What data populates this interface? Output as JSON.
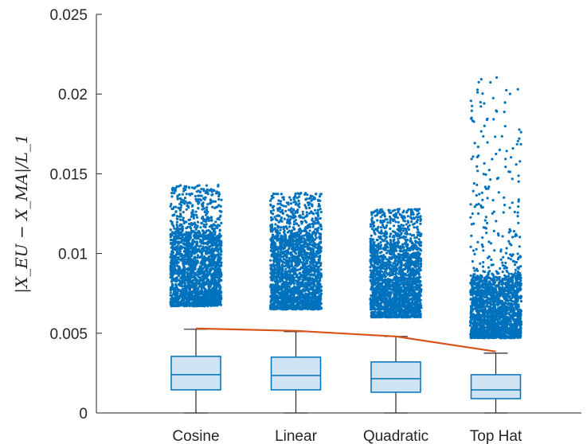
{
  "chart_data": {
    "type": "box",
    "title": "",
    "xlabel": "",
    "ylabel": "|X_EU − X_MA|/L_1",
    "ylim": [
      0,
      0.025
    ],
    "yticks": [
      0,
      0.005,
      0.01,
      0.015,
      0.02,
      0.025
    ],
    "ytick_labels": [
      "0",
      "0.005",
      "0.01",
      "0.015",
      "0.02",
      "0.025"
    ],
    "grid": false,
    "colors": {
      "box_edge": "#0072BD",
      "box_fill": "#cfe3f2",
      "outlier": "#0072BD",
      "whisker": "#262626",
      "trend_line": "#D95319"
    },
    "categories": [
      "Cosine",
      "Linear",
      "Quadratic",
      "Top Hat"
    ],
    "boxes": [
      {
        "category": "Cosine",
        "whisker_low": 0,
        "q1": 0.00145,
        "median": 0.0024,
        "q3": 0.00355,
        "whisker_high": 0.00525,
        "outlier_min": 0.0067,
        "outlier_dense_max": 0.0113,
        "outlier_max": 0.0143
      },
      {
        "category": "Linear",
        "whisker_low": 0,
        "q1": 0.00145,
        "median": 0.00235,
        "q3": 0.0035,
        "whisker_high": 0.0051,
        "outlier_min": 0.0065,
        "outlier_dense_max": 0.0112,
        "outlier_max": 0.0138
      },
      {
        "category": "Quadratic",
        "whisker_low": 0,
        "q1": 0.0013,
        "median": 0.00215,
        "q3": 0.0032,
        "whisker_high": 0.0048,
        "outlier_min": 0.006,
        "outlier_dense_max": 0.0105,
        "outlier_max": 0.0128
      },
      {
        "category": "Top Hat",
        "whisker_low": 0,
        "q1": 0.0009,
        "median": 0.00145,
        "q3": 0.0024,
        "whisker_high": 0.00375,
        "outlier_min": 0.0047,
        "outlier_dense_max": 0.0085,
        "outlier_max": 0.0213
      }
    ],
    "trend_line": {
      "x": [
        "Cosine",
        "Linear",
        "Quadratic",
        "Top Hat"
      ],
      "y": [
        0.0053,
        0.00515,
        0.0048,
        0.00385
      ]
    }
  }
}
